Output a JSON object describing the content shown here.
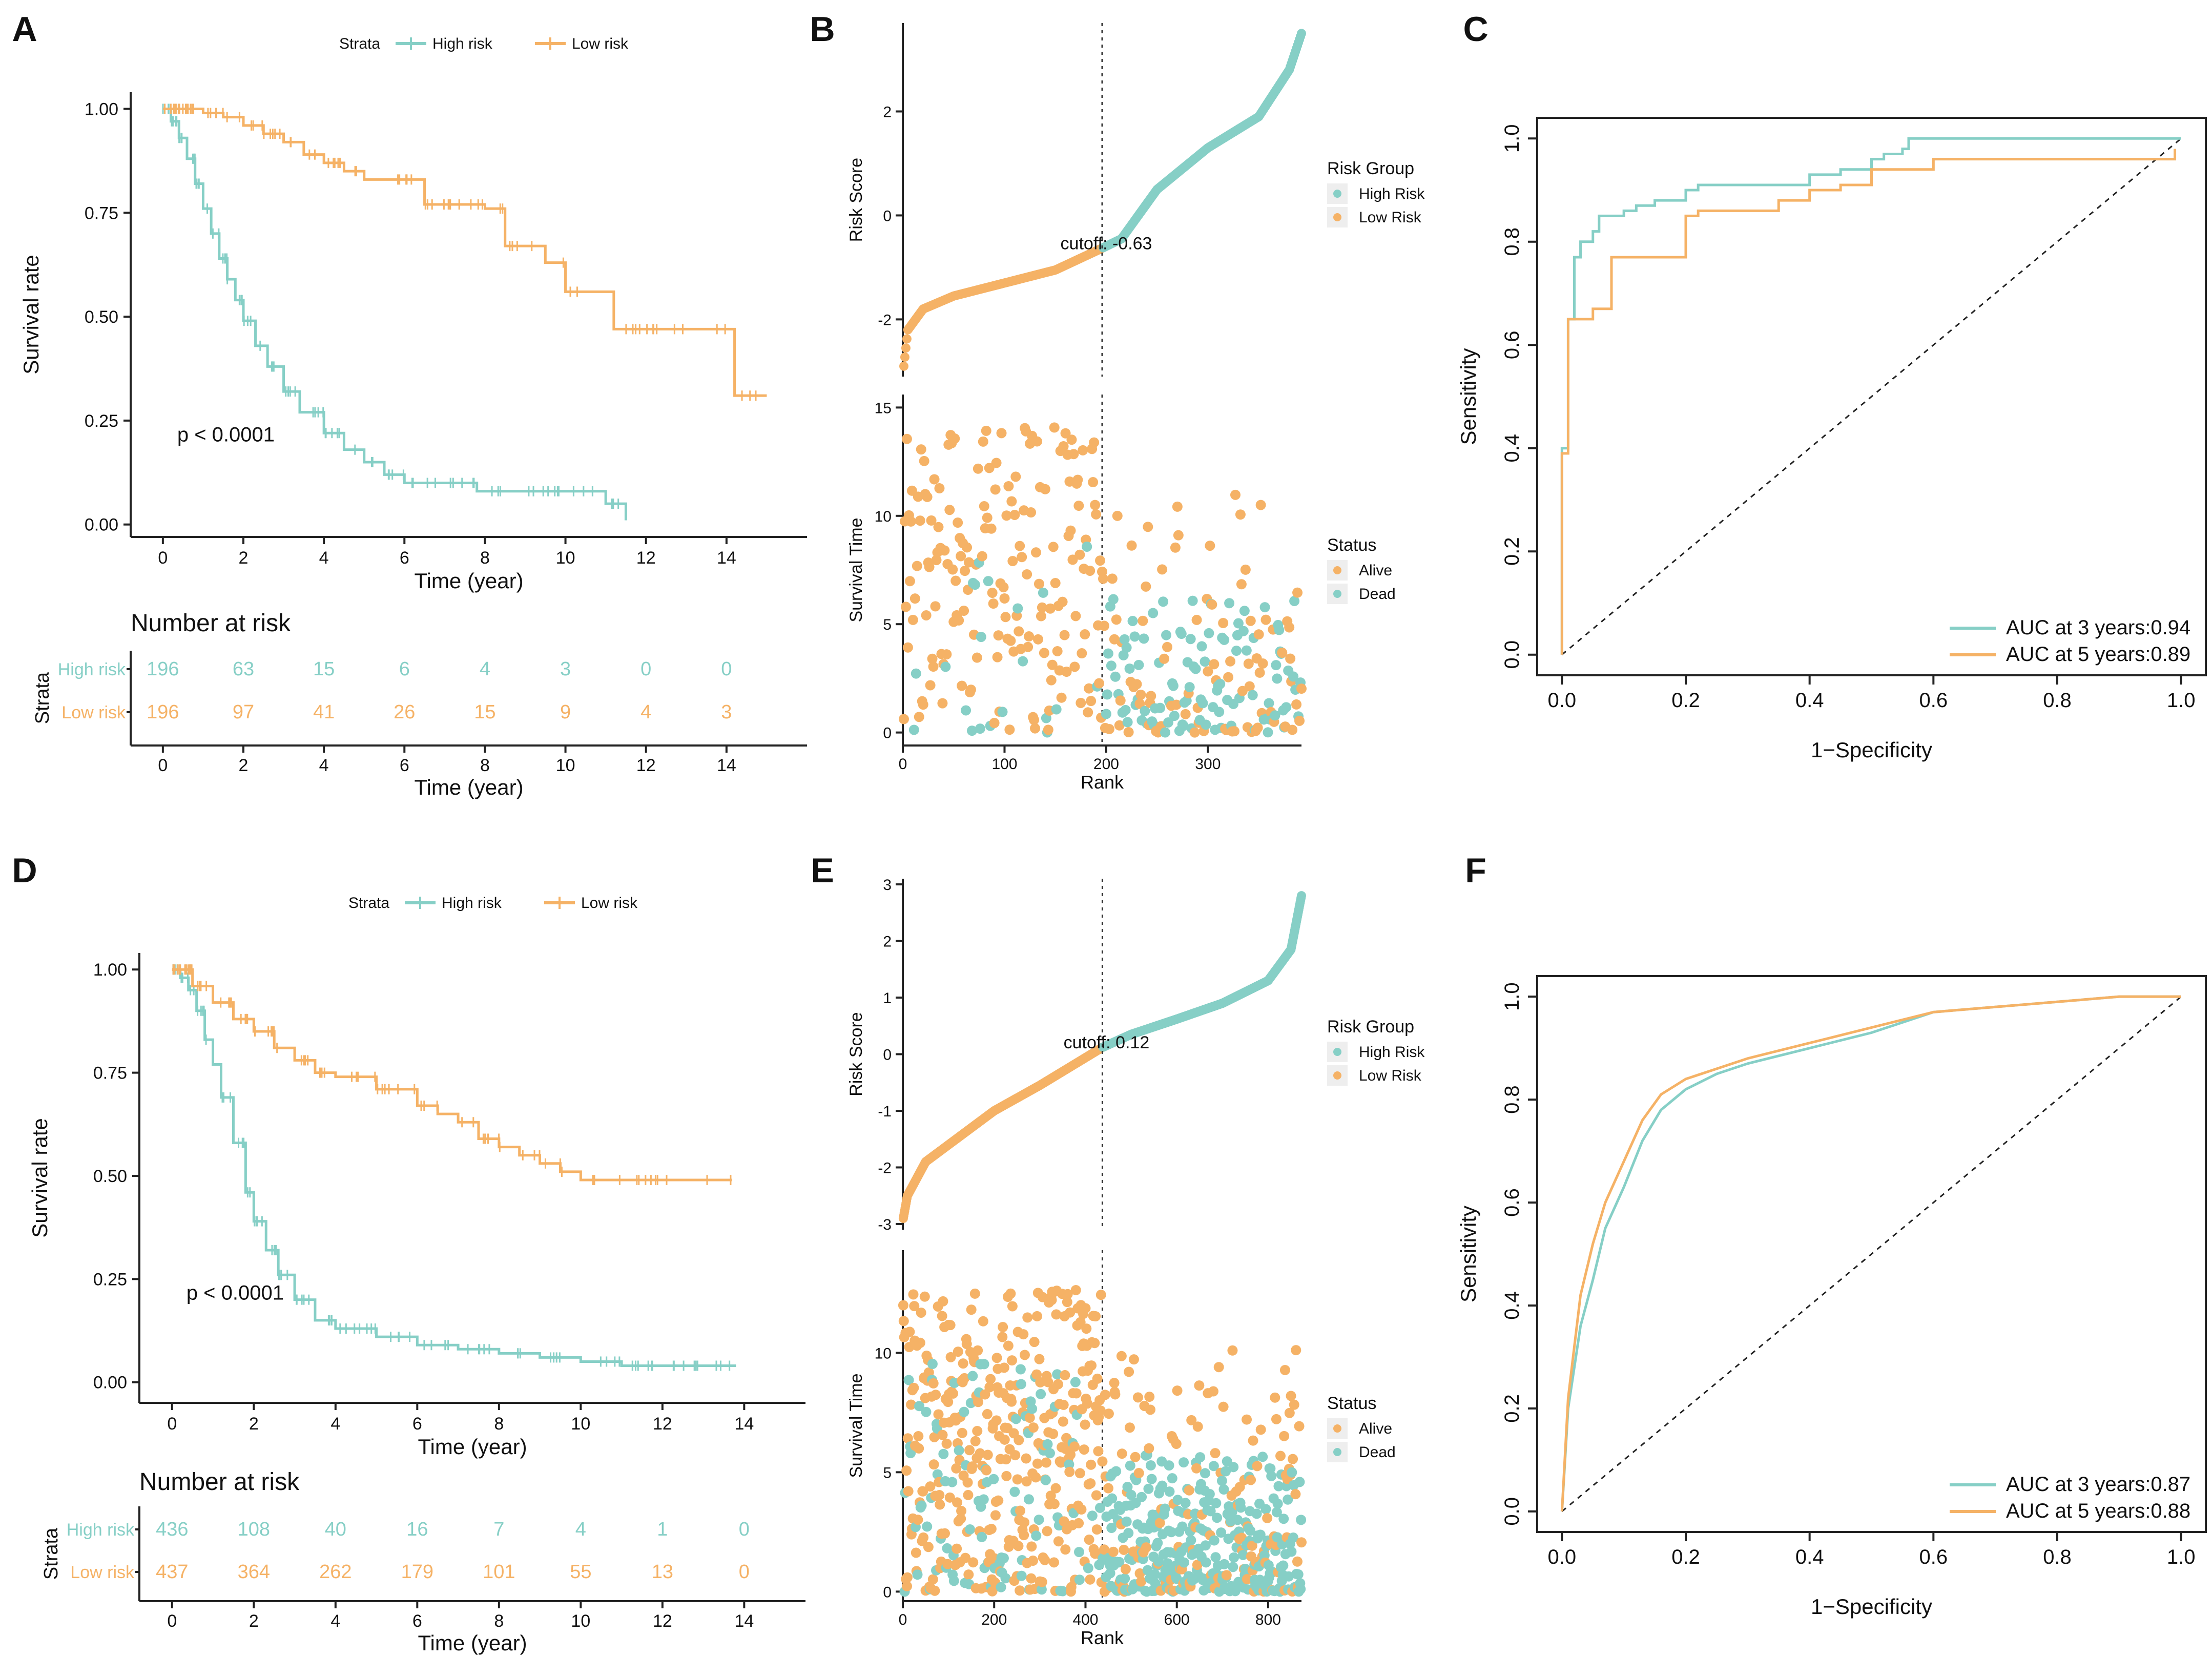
{
  "colors": {
    "high": "#86CFC6",
    "low": "#F5B266",
    "axis": "#222222",
    "text": "#111111"
  },
  "panels": {
    "A": {
      "letter": "A"
    },
    "B": {
      "letter": "B"
    },
    "C": {
      "letter": "C"
    },
    "D": {
      "letter": "D"
    },
    "E": {
      "letter": "E"
    },
    "F": {
      "letter": "F"
    }
  },
  "chart_data": [
    {
      "id": "A",
      "type": "line",
      "title": "",
      "legend": {
        "title": "Strata",
        "labels": [
          "High risk",
          "Low risk"
        ],
        "position": "top"
      },
      "xlabel": "Time (year)",
      "ylabel": "Survival rate",
      "xlim": [
        -0.8,
        16
      ],
      "ylim": [
        -0.03,
        1.04
      ],
      "xticks": [
        0,
        2,
        4,
        6,
        8,
        10,
        12,
        14
      ],
      "yticks": [
        0,
        0.25,
        0.5,
        0.75,
        1.0
      ],
      "yticklabels": [
        "0.00",
        "0.25",
        "0.50",
        "0.75",
        "1.00"
      ],
      "annotation": "p < 0.0001",
      "series": [
        {
          "name": "High risk",
          "x": [
            0,
            0.2,
            0.4,
            0.6,
            0.8,
            1.0,
            1.2,
            1.4,
            1.6,
            1.8,
            2.0,
            2.3,
            2.6,
            3.0,
            3.4,
            4.0,
            4.5,
            5.0,
            5.5,
            6.0,
            7.0,
            7.8,
            8.5,
            9.5,
            10.5,
            11.0,
            11.5
          ],
          "y": [
            1.0,
            0.97,
            0.93,
            0.88,
            0.82,
            0.76,
            0.7,
            0.64,
            0.59,
            0.54,
            0.49,
            0.43,
            0.38,
            0.32,
            0.27,
            0.22,
            0.18,
            0.15,
            0.12,
            0.1,
            0.1,
            0.08,
            0.08,
            0.08,
            0.08,
            0.05,
            0.01
          ]
        },
        {
          "name": "Low risk",
          "x": [
            0,
            0.5,
            1.0,
            1.5,
            2.0,
            2.5,
            3.0,
            3.5,
            4.0,
            4.5,
            5.0,
            6.0,
            6.5,
            8.0,
            8.5,
            9.0,
            9.5,
            10.0,
            11.0,
            11.2,
            13.0,
            14.0,
            14.2,
            15.0
          ],
          "y": [
            1.0,
            1.0,
            0.99,
            0.98,
            0.96,
            0.94,
            0.92,
            0.89,
            0.87,
            0.85,
            0.83,
            0.83,
            0.77,
            0.76,
            0.67,
            0.67,
            0.63,
            0.56,
            0.56,
            0.47,
            0.47,
            0.47,
            0.31,
            0.31
          ]
        }
      ],
      "risk_table": {
        "title": "Number at risk",
        "strata_label": "Strata",
        "xlabel": "Time (year)",
        "times": [
          0,
          2,
          4,
          6,
          8,
          10,
          12,
          14
        ],
        "rows": [
          {
            "label": "High risk",
            "values": [
              196,
              63,
              15,
              6,
              4,
              3,
              0,
              0
            ]
          },
          {
            "label": "Low risk",
            "values": [
              196,
              97,
              41,
              26,
              15,
              9,
              4,
              3
            ]
          }
        ]
      }
    },
    {
      "id": "B",
      "type": "scatter",
      "n": 392,
      "top": {
        "ylabel": "Risk Score",
        "yticks": [
          -2,
          0,
          2
        ],
        "ylim": [
          -3.1,
          3.7
        ],
        "rank_anchors": [
          1,
          5,
          20,
          50,
          100,
          150,
          196,
          215,
          250,
          300,
          350,
          380,
          392
        ],
        "score_anchors": [
          -2.9,
          -2.2,
          -1.8,
          -1.55,
          -1.3,
          -1.05,
          -0.63,
          -0.45,
          0.5,
          1.3,
          1.9,
          2.8,
          3.5
        ]
      },
      "cutoff": {
        "rank": 196,
        "label": "cutoff: -0.63"
      },
      "bottom": {
        "ylabel": "Survival Time",
        "xlabel": "Rank",
        "yticks": [
          0,
          5,
          10,
          15
        ],
        "ylim": [
          -0.6,
          15.6
        ],
        "xticks": [
          0,
          100,
          200,
          300
        ],
        "xlim": [
          0,
          392
        ]
      },
      "legend_risk": {
        "title": "Risk Group",
        "labels": [
          "High Risk",
          "Low Risk"
        ]
      },
      "legend_status": {
        "title": "Status",
        "labels": [
          "Alive",
          "Dead"
        ]
      }
    },
    {
      "id": "C",
      "type": "line",
      "xlabel": "1−Specificity",
      "ylabel": "Sensitivity",
      "xlim": [
        -0.04,
        1.04
      ],
      "ylim": [
        -0.04,
        1.04
      ],
      "ticks": [
        0,
        0.2,
        0.4,
        0.6,
        0.8,
        1.0
      ],
      "ticklabels": [
        "0.0",
        "0.2",
        "0.4",
        "0.6",
        "0.8",
        "1.0"
      ],
      "series": [
        {
          "name": "AUC at 3 years:0.94",
          "x": [
            0,
            0,
            0.01,
            0.01,
            0.02,
            0.02,
            0.03,
            0.05,
            0.06,
            0.08,
            0.1,
            0.12,
            0.15,
            0.2,
            0.22,
            0.3,
            0.4,
            0.45,
            0.5,
            0.52,
            0.55,
            0.56,
            1.0
          ],
          "y": [
            0,
            0.4,
            0.52,
            0.65,
            0.72,
            0.77,
            0.8,
            0.82,
            0.85,
            0.85,
            0.86,
            0.87,
            0.88,
            0.9,
            0.91,
            0.91,
            0.93,
            0.94,
            0.96,
            0.97,
            0.98,
            1.0,
            1.0
          ]
        },
        {
          "name": "AUC at 5 years:0.89",
          "x": [
            0,
            0,
            0.01,
            0.01,
            0.03,
            0.05,
            0.08,
            0.08,
            0.1,
            0.12,
            0.15,
            0.19,
            0.2,
            0.2,
            0.22,
            0.3,
            0.35,
            0.4,
            0.45,
            0.5,
            0.6,
            0.8,
            0.99,
            0.99
          ],
          "y": [
            0,
            0.39,
            0.4,
            0.65,
            0.65,
            0.67,
            0.67,
            0.77,
            0.77,
            0.77,
            0.77,
            0.77,
            0.77,
            0.85,
            0.86,
            0.86,
            0.88,
            0.9,
            0.91,
            0.94,
            0.96,
            0.96,
            0.96,
            0.98
          ]
        }
      ]
    },
    {
      "id": "D",
      "type": "line",
      "legend": {
        "title": "Strata",
        "labels": [
          "High risk",
          "Low risk"
        ],
        "position": "top"
      },
      "xlabel": "Time (year)",
      "ylabel": "Survival rate",
      "xlim": [
        -0.8,
        15.5
      ],
      "ylim": [
        -0.05,
        1.04
      ],
      "xticks": [
        0,
        2,
        4,
        6,
        8,
        10,
        12,
        14
      ],
      "yticks": [
        0,
        0.25,
        0.5,
        0.75,
        1.0
      ],
      "yticklabels": [
        "0.00",
        "0.25",
        "0.50",
        "0.75",
        "1.00"
      ],
      "annotation": "p < 0.0001",
      "series": [
        {
          "name": "High risk",
          "x": [
            0,
            0.2,
            0.4,
            0.6,
            0.8,
            1.0,
            1.2,
            1.5,
            1.8,
            2.0,
            2.3,
            2.6,
            3.0,
            3.5,
            4.0,
            5.0,
            6.0,
            7.0,
            8.0,
            9.0,
            10.0,
            11.0,
            12.0,
            13.0,
            13.8
          ],
          "y": [
            1.0,
            0.98,
            0.95,
            0.9,
            0.83,
            0.77,
            0.69,
            0.58,
            0.46,
            0.39,
            0.32,
            0.26,
            0.2,
            0.15,
            0.13,
            0.11,
            0.09,
            0.08,
            0.07,
            0.06,
            0.05,
            0.04,
            0.04,
            0.04,
            0.04
          ]
        },
        {
          "name": "Low risk",
          "x": [
            0,
            0.5,
            1.0,
            1.5,
            2.0,
            2.5,
            3.0,
            3.5,
            4.0,
            5.0,
            6.0,
            6.5,
            7.0,
            7.5,
            8.0,
            8.5,
            9.0,
            9.5,
            10.0,
            10.5,
            11.0,
            12.0,
            13.0,
            13.7
          ],
          "y": [
            1.0,
            0.96,
            0.92,
            0.88,
            0.85,
            0.81,
            0.78,
            0.75,
            0.74,
            0.71,
            0.67,
            0.65,
            0.63,
            0.59,
            0.57,
            0.55,
            0.53,
            0.51,
            0.49,
            0.49,
            0.49,
            0.49,
            0.49,
            0.49
          ]
        }
      ],
      "risk_table": {
        "title": "Number at risk",
        "strata_label": "Strata",
        "xlabel": "Time (year)",
        "times": [
          0,
          2,
          4,
          6,
          8,
          10,
          12,
          14
        ],
        "rows": [
          {
            "label": "High risk",
            "values": [
              436,
              108,
              40,
              16,
              7,
              4,
              1,
              0
            ]
          },
          {
            "label": "Low risk",
            "values": [
              437,
              364,
              262,
              179,
              101,
              55,
              13,
              0
            ]
          }
        ]
      }
    },
    {
      "id": "E",
      "type": "scatter",
      "n": 873,
      "top": {
        "ylabel": "Risk Score",
        "yticks": [
          -3,
          -2,
          -1,
          0,
          1,
          2,
          3
        ],
        "ylim": [
          -3.1,
          3.1
        ],
        "rank_anchors": [
          1,
          10,
          50,
          100,
          200,
          300,
          437,
          500,
          600,
          700,
          800,
          850,
          873
        ],
        "score_anchors": [
          -2.9,
          -2.5,
          -1.9,
          -1.6,
          -1.0,
          -0.55,
          0.12,
          0.35,
          0.62,
          0.9,
          1.3,
          1.85,
          2.8
        ]
      },
      "cutoff": {
        "rank": 437,
        "label": "cutoff: 0.12"
      },
      "bottom": {
        "ylabel": "Survival Time",
        "xlabel": "Rank",
        "yticks": [
          0,
          5,
          10
        ],
        "ylim": [
          -0.4,
          14.3
        ],
        "xticks": [
          0,
          200,
          400,
          600,
          800
        ],
        "xlim": [
          0,
          873
        ]
      },
      "legend_risk": {
        "title": "Risk Group",
        "labels": [
          "High Risk",
          "Low Risk"
        ]
      },
      "legend_status": {
        "title": "Status",
        "labels": [
          "Alive",
          "Dead"
        ]
      }
    },
    {
      "id": "F",
      "type": "line",
      "xlabel": "1−Specificity",
      "ylabel": "Sensitivity",
      "xlim": [
        -0.04,
        1.04
      ],
      "ylim": [
        -0.04,
        1.04
      ],
      "ticks": [
        0,
        0.2,
        0.4,
        0.6,
        0.8,
        1.0
      ],
      "ticklabels": [
        "0.0",
        "0.2",
        "0.4",
        "0.6",
        "0.8",
        "1.0"
      ],
      "series": [
        {
          "name": "AUC at 3 years:0.87",
          "x": [
            0,
            0.01,
            0.02,
            0.03,
            0.05,
            0.07,
            0.1,
            0.13,
            0.16,
            0.2,
            0.25,
            0.3,
            0.4,
            0.5,
            0.6,
            0.7,
            0.8,
            0.9,
            1.0
          ],
          "y": [
            0,
            0.2,
            0.28,
            0.36,
            0.45,
            0.55,
            0.63,
            0.72,
            0.78,
            0.82,
            0.85,
            0.87,
            0.9,
            0.93,
            0.97,
            0.98,
            0.99,
            1.0,
            1.0
          ]
        },
        {
          "name": "AUC at 5 years:0.88",
          "x": [
            0,
            0.01,
            0.02,
            0.03,
            0.05,
            0.07,
            0.1,
            0.13,
            0.16,
            0.2,
            0.25,
            0.3,
            0.4,
            0.5,
            0.6,
            0.7,
            0.8,
            0.9,
            1.0
          ],
          "y": [
            0,
            0.22,
            0.32,
            0.42,
            0.52,
            0.6,
            0.68,
            0.76,
            0.81,
            0.84,
            0.86,
            0.88,
            0.91,
            0.94,
            0.97,
            0.98,
            0.99,
            1.0,
            1.0
          ]
        }
      ]
    }
  ]
}
